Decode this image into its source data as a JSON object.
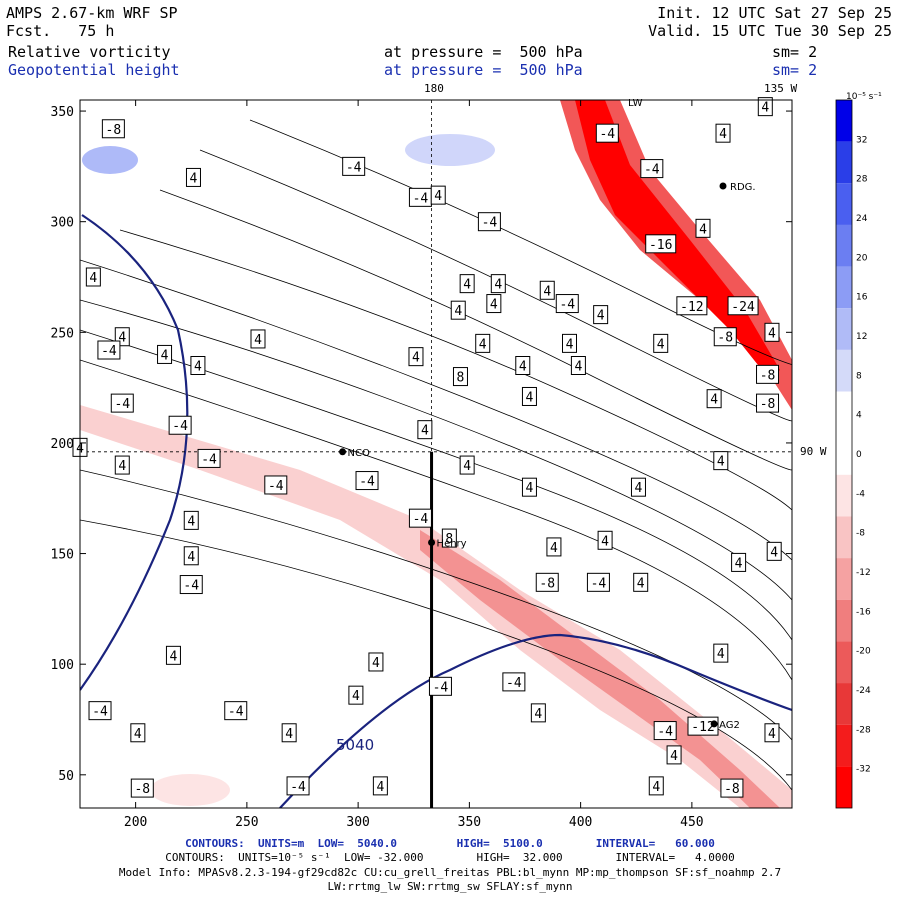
{
  "header": {
    "model": "AMPS 2.67-km WRF SP",
    "init": "Init. 12 UTC Sat 27 Sep 25",
    "fcst_label": "Fcst.",
    "fcst_value": "75 h",
    "valid": "Valid. 15 UTC Tue 30 Sep 25",
    "field1": "Relative vorticity",
    "field2": "Geopotential height",
    "pressure1": "at pressure =  500 hPa",
    "pressure2": "at pressure =  500 hPa",
    "sm1": "sm= 2",
    "sm2": "sm= 2",
    "top_lon1": "180",
    "top_lon2": "135 W",
    "right_lat": "90 W",
    "station_rdg": "RDG.",
    "station_lw": "LW",
    "geo_label": "5040"
  },
  "chart_data": {
    "type": "contour",
    "title": "Relative vorticity / Geopotential height at 500 hPa",
    "xlim": [
      175,
      495
    ],
    "ylim": [
      35,
      355
    ],
    "x_ticks": [
      "200",
      "250",
      "300",
      "350",
      "400",
      "450"
    ],
    "x_tick_values": [
      200,
      250,
      300,
      350,
      400,
      450
    ],
    "y_ticks": [
      "50",
      "100",
      "150",
      "200",
      "250",
      "300",
      "350"
    ],
    "y_tick_values": [
      50,
      100,
      150,
      200,
      250,
      300,
      350
    ],
    "crosshair": {
      "x": 333,
      "y": 196
    },
    "transect": {
      "x": 333,
      "y_from": 35,
      "y_to": 196
    },
    "stations": [
      {
        "name": "NCO",
        "x": 293,
        "y": 196
      },
      {
        "name": "Henry",
        "x": 333,
        "y": 155
      },
      {
        "name": "AG2",
        "x": 460,
        "y": 73
      }
    ],
    "colorbar": {
      "unit": "10⁻⁵ s⁻¹",
      "labels": [
        "32",
        "28",
        "24",
        "20",
        "16",
        "12",
        "8",
        "4",
        "0",
        "-4",
        "-8",
        "-12",
        "-16",
        "-20",
        "-24",
        "-28",
        "-32"
      ],
      "colors": [
        "#0000e8",
        "#2a3ee8",
        "#4a5ff0",
        "#6b7ef2",
        "#8c9cf5",
        "#b0bbf7",
        "#d4daf9",
        "#ffffff",
        "#ffffff",
        "#fde4e4",
        "#f9c4c4",
        "#f5a2a2",
        "#f07e7e",
        "#ec5a5a",
        "#e83838",
        "#f41c1c",
        "#ff0000"
      ]
    },
    "geopotential_contours": [
      {
        "value": "5040",
        "color": "#1a237e"
      },
      {
        "value": "5100",
        "color": "#1a237e"
      }
    ],
    "vorticity_labels": [
      {
        "t": "-8",
        "x": 190,
        "y": 342
      },
      {
        "t": "4",
        "x": 226,
        "y": 320
      },
      {
        "t": "-4",
        "x": 298,
        "y": 325
      },
      {
        "t": "-4",
        "x": 328,
        "y": 311
      },
      {
        "t": "4",
        "x": 336,
        "y": 312
      },
      {
        "t": "-4",
        "x": 359,
        "y": 300
      },
      {
        "t": "-4",
        "x": 412,
        "y": 340
      },
      {
        "t": "4",
        "x": 464,
        "y": 340
      },
      {
        "t": "4",
        "x": 483,
        "y": 352
      },
      {
        "t": "4",
        "x": 181,
        "y": 275
      },
      {
        "t": "4",
        "x": 194,
        "y": 248
      },
      {
        "t": "-4",
        "x": 188,
        "y": 242
      },
      {
        "t": "4",
        "x": 213,
        "y": 240
      },
      {
        "t": "4",
        "x": 228,
        "y": 235
      },
      {
        "t": "4",
        "x": 255,
        "y": 247
      },
      {
        "t": "4",
        "x": 326,
        "y": 239
      },
      {
        "t": "-4",
        "x": 194,
        "y": 218
      },
      {
        "t": "-4",
        "x": 220,
        "y": 208
      },
      {
        "t": "4",
        "x": 330,
        "y": 206
      },
      {
        "t": "4",
        "x": 349,
        "y": 272
      },
      {
        "t": "4",
        "x": 363,
        "y": 272
      },
      {
        "t": "4",
        "x": 345,
        "y": 260
      },
      {
        "t": "4",
        "x": 361,
        "y": 263
      },
      {
        "t": "4",
        "x": 385,
        "y": 269
      },
      {
        "t": "-4",
        "x": 394,
        "y": 263
      },
      {
        "t": "4",
        "x": 409,
        "y": 258
      },
      {
        "t": "4",
        "x": 356,
        "y": 245
      },
      {
        "t": "4",
        "x": 395,
        "y": 245
      },
      {
        "t": "4",
        "x": 374,
        "y": 235
      },
      {
        "t": "4",
        "x": 399,
        "y": 235
      },
      {
        "t": "4",
        "x": 436,
        "y": 245
      },
      {
        "t": "4",
        "x": 377,
        "y": 221
      },
      {
        "t": "4",
        "x": 460,
        "y": 220
      },
      {
        "t": "-12",
        "x": 450,
        "y": 262
      },
      {
        "t": "-24",
        "x": 473,
        "y": 262
      },
      {
        "t": "-8",
        "x": 465,
        "y": 248
      },
      {
        "t": "4",
        "x": 486,
        "y": 250
      },
      {
        "t": "-8",
        "x": 484,
        "y": 231
      },
      {
        "t": "-8",
        "x": 484,
        "y": 218
      },
      {
        "t": "-16",
        "x": 436,
        "y": 290
      },
      {
        "t": "-4",
        "x": 432,
        "y": 324
      },
      {
        "t": "4",
        "x": 455,
        "y": 297
      },
      {
        "t": "8",
        "x": 346,
        "y": 230
      },
      {
        "t": "4",
        "x": 175,
        "y": 198
      },
      {
        "t": "4",
        "x": 194,
        "y": 190
      },
      {
        "t": "-4",
        "x": 233,
        "y": 193
      },
      {
        "t": "-4",
        "x": 263,
        "y": 181
      },
      {
        "t": "-4",
        "x": 304,
        "y": 183
      },
      {
        "t": "4",
        "x": 349,
        "y": 190
      },
      {
        "t": "4",
        "x": 377,
        "y": 180
      },
      {
        "t": "4",
        "x": 426,
        "y": 180
      },
      {
        "t": "4",
        "x": 463,
        "y": 192
      },
      {
        "t": "4",
        "x": 225,
        "y": 165
      },
      {
        "t": "4",
        "x": 225,
        "y": 149
      },
      {
        "t": "-4",
        "x": 225,
        "y": 136
      },
      {
        "t": "-4",
        "x": 328,
        "y": 166
      },
      {
        "t": "8",
        "x": 341,
        "y": 157
      },
      {
        "t": "4",
        "x": 388,
        "y": 153
      },
      {
        "t": "4",
        "x": 411,
        "y": 156
      },
      {
        "t": "-8",
        "x": 385,
        "y": 137
      },
      {
        "t": "-4",
        "x": 408,
        "y": 137
      },
      {
        "t": "4",
        "x": 427,
        "y": 137
      },
      {
        "t": "4",
        "x": 471,
        "y": 146
      },
      {
        "t": "4",
        "x": 487,
        "y": 151
      },
      {
        "t": "4",
        "x": 217,
        "y": 104
      },
      {
        "t": "4",
        "x": 308,
        "y": 101
      },
      {
        "t": "4",
        "x": 299,
        "y": 86
      },
      {
        "t": "-4",
        "x": 337,
        "y": 90
      },
      {
        "t": "-4",
        "x": 370,
        "y": 92
      },
      {
        "t": "4",
        "x": 381,
        "y": 78
      },
      {
        "t": "4",
        "x": 463,
        "y": 105
      },
      {
        "t": "-4",
        "x": 184,
        "y": 79
      },
      {
        "t": "-4",
        "x": 245,
        "y": 79
      },
      {
        "t": "4",
        "x": 201,
        "y": 69
      },
      {
        "t": "4",
        "x": 269,
        "y": 69
      },
      {
        "t": "-4",
        "x": 438,
        "y": 70
      },
      {
        "t": "-12",
        "x": 455,
        "y": 72
      },
      {
        "t": "4",
        "x": 486,
        "y": 69
      },
      {
        "t": "4",
        "x": 442,
        "y": 59
      },
      {
        "t": "-8",
        "x": 203,
        "y": 44
      },
      {
        "t": "-4",
        "x": 273,
        "y": 45
      },
      {
        "t": "4",
        "x": 310,
        "y": 45
      },
      {
        "t": "4",
        "x": 434,
        "y": 45
      },
      {
        "t": "-8",
        "x": 468,
        "y": 44
      }
    ]
  },
  "footer": {
    "line1": "CONTOURS:  UNITS=m  LOW=  5040.0         HIGH=  5100.0        INTERVAL=   60.000",
    "line2": "CONTOURS:  UNITS=10⁻⁵ s⁻¹  LOW= -32.000        HIGH=  32.000        INTERVAL=   4.0000",
    "line3": "Model Info: MPASv8.2.3-194-gf29cd82c CU:cu_grell_freitas PBL:bl_mynn MP:mp_thompson SF:sf_noahmp 2.7",
    "line4": "LW:rrtmg_lw SW:rrtmg_sw SFLAY:sf_mynn"
  }
}
